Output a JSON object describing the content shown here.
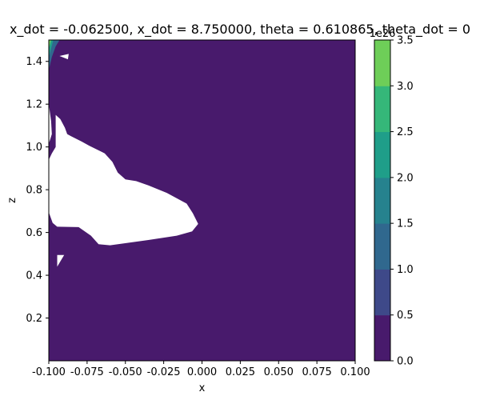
{
  "chart_data": {
    "type": "contourf",
    "title": "x_dot = -0.062500, x_dot = 8.750000, theta = 0.610865, theta_dot = 0",
    "xlabel": "x",
    "ylabel": "z",
    "xlim": [
      -0.1,
      0.1
    ],
    "ylim": [
      0.0,
      1.5
    ],
    "x_ticks": [
      "-0.100",
      "-0.075",
      "-0.050",
      "-0.025",
      "0.000",
      "0.025",
      "0.050",
      "0.075",
      "0.100"
    ],
    "y_ticks": [
      "0.2",
      "0.4",
      "0.6",
      "0.8",
      "1.0",
      "1.2",
      "1.4"
    ],
    "colorbar": {
      "levels": [
        0.0,
        0.5,
        1.0,
        1.5,
        2.0,
        2.5,
        3.0,
        3.5
      ],
      "tick_labels": [
        "0.0",
        "0.5",
        "1.0",
        "1.5",
        "2.0",
        "2.5",
        "3.0",
        "3.5"
      ],
      "colors": [
        "#481a6c",
        "#3e4989",
        "#30688e",
        "#26828e",
        "#1f9e89",
        "#35b779",
        "#6ece58",
        "#d2e21b"
      ],
      "offset_text": "1e26"
    },
    "background_level_color": "#481a6c",
    "undefined_region_color": "#ffffff",
    "undefined_regions": [
      [
        [
          -0.1,
          0.94
        ],
        [
          -0.098,
          0.97
        ],
        [
          -0.0955,
          1.0
        ],
        [
          -0.0955,
          1.15
        ],
        [
          -0.0925,
          1.13
        ],
        [
          -0.0895,
          1.09
        ],
        [
          -0.088,
          1.06
        ],
        [
          -0.0855,
          1.05
        ],
        [
          -0.0785,
          1.025
        ],
        [
          -0.0735,
          1.005
        ],
        [
          -0.0635,
          0.97
        ],
        [
          -0.0585,
          0.93
        ],
        [
          -0.055,
          0.88
        ],
        [
          -0.05,
          0.848
        ],
        [
          -0.043,
          0.84
        ],
        [
          -0.035,
          0.82
        ],
        [
          -0.023,
          0.785
        ],
        [
          -0.01,
          0.735
        ],
        [
          -0.006,
          0.69
        ],
        [
          -0.0025,
          0.64
        ],
        [
          -0.0065,
          0.605
        ],
        [
          -0.0165,
          0.585
        ],
        [
          -0.035,
          0.565
        ],
        [
          -0.06,
          0.54
        ],
        [
          -0.0675,
          0.545
        ],
        [
          -0.0725,
          0.585
        ],
        [
          -0.0805,
          0.625
        ],
        [
          -0.0945,
          0.627
        ],
        [
          -0.0975,
          0.645
        ],
        [
          -0.1,
          0.695
        ]
      ],
      [
        [
          -0.0945,
          0.44
        ],
        [
          -0.0945,
          0.495
        ],
        [
          -0.09,
          0.495
        ]
      ],
      [
        [
          -0.1,
          1.015
        ],
        [
          -0.1,
          1.2
        ],
        [
          -0.0985,
          1.12
        ],
        [
          -0.098,
          1.06
        ]
      ]
    ],
    "peak_region_points": [
      [
        -0.1,
        1.5
      ],
      [
        -0.1,
        1.36
      ],
      [
        -0.098,
        1.42
      ],
      [
        -0.0955,
        1.47
      ],
      [
        -0.093,
        1.5
      ]
    ]
  }
}
